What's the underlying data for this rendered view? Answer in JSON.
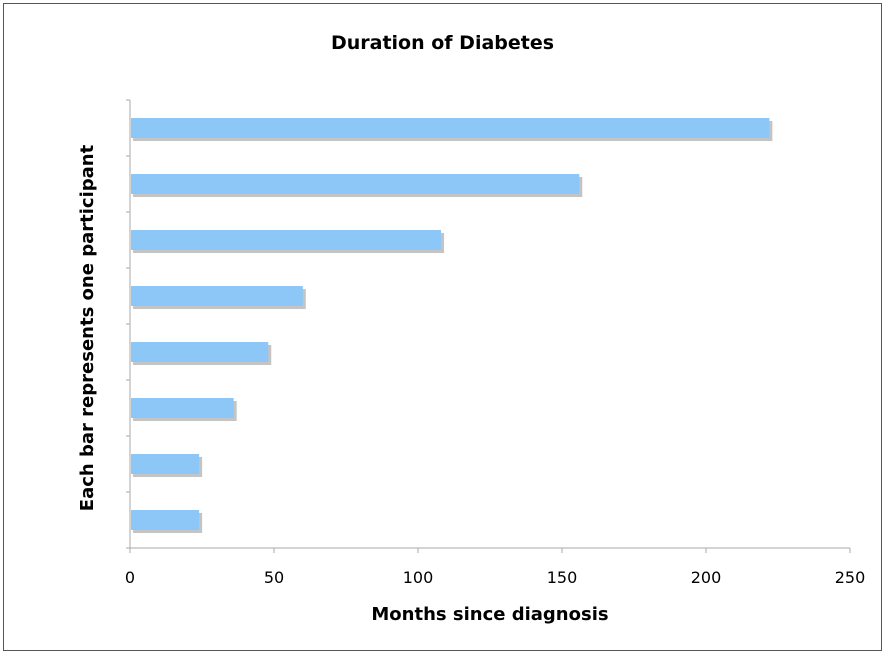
{
  "chart_data": {
    "type": "bar",
    "orientation": "horizontal",
    "title": "Duration of Diabetes",
    "xlabel": "Months since diagnosis",
    "ylabel": "Each bar represents one participant",
    "xlim": [
      0,
      250
    ],
    "xticks": [
      0,
      50,
      100,
      150,
      200,
      250
    ],
    "values": [
      222,
      156,
      108,
      60,
      48,
      36,
      24,
      24
    ],
    "grid": false,
    "legend": "none"
  },
  "colors": {
    "bar": "#8cc7f7",
    "bar_shadow": "#c4c4c4",
    "axis": "#aaaaaa",
    "frame": "#555555"
  }
}
